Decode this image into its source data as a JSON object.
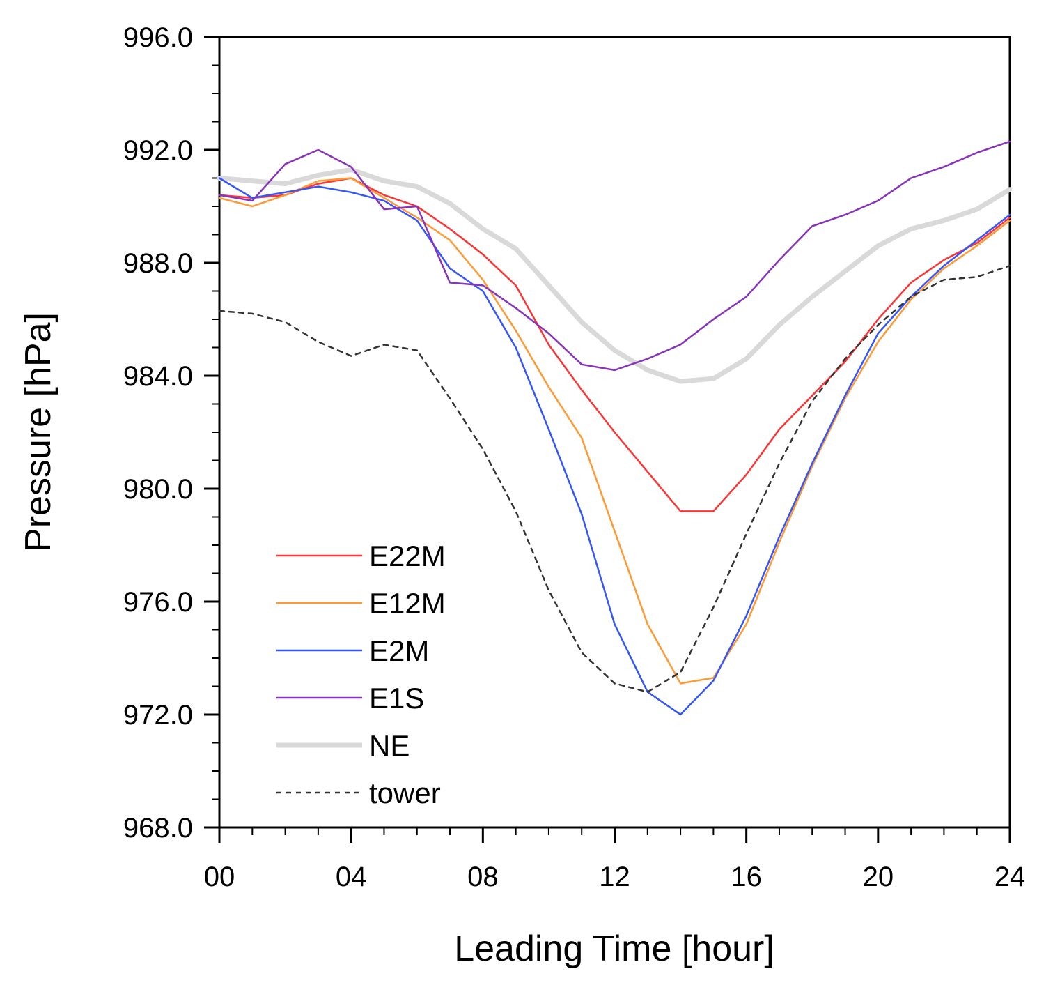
{
  "chart_data": {
    "type": "line",
    "title": "",
    "xlabel": "Leading Time [hour]",
    "ylabel": "Pressure [hPa]",
    "xlim": [
      0,
      24
    ],
    "ylim": [
      968,
      996
    ],
    "x_ticks": [
      0,
      4,
      8,
      12,
      16,
      20,
      24
    ],
    "x_tick_labels": [
      "00",
      "04",
      "08",
      "12",
      "16",
      "20",
      "24"
    ],
    "y_ticks": [
      968,
      972,
      976,
      980,
      984,
      988,
      992,
      996
    ],
    "y_tick_labels": [
      "968.0",
      "972.0",
      "976.0",
      "980.0",
      "984.0",
      "988.0",
      "992.0",
      "996.0"
    ],
    "x_minor_step": 1,
    "y_minor_step": 1,
    "grid": false,
    "legend_position": "lower-left",
    "x": [
      0,
      1,
      2,
      3,
      4,
      5,
      6,
      7,
      8,
      9,
      10,
      11,
      12,
      13,
      14,
      15,
      16,
      17,
      18,
      19,
      20,
      21,
      22,
      23,
      24
    ],
    "series": [
      {
        "name": "E22M",
        "color": "#ff3333",
        "style": "solid",
        "values": [
          990.4,
          990.3,
          990.4,
          990.8,
          991.0,
          990.4,
          990.0,
          989.2,
          988.3,
          987.2,
          985.1,
          983.5,
          982.0,
          980.6,
          979.2,
          979.2,
          980.5,
          982.1,
          983.3,
          984.5,
          986.0,
          987.3,
          988.1,
          988.7,
          989.6
        ]
      },
      {
        "name": "E12M",
        "color": "#ff9933",
        "style": "solid",
        "values": [
          990.3,
          990.0,
          990.4,
          990.9,
          991.0,
          990.3,
          989.6,
          988.8,
          987.4,
          985.6,
          983.6,
          981.8,
          978.5,
          975.2,
          973.1,
          973.3,
          975.2,
          978.1,
          980.8,
          983.2,
          985.2,
          986.7,
          987.8,
          988.6,
          989.5
        ]
      },
      {
        "name": "E2M",
        "color": "#3355ff",
        "style": "solid",
        "values": [
          991.0,
          990.3,
          990.5,
          990.7,
          990.5,
          990.2,
          989.5,
          987.8,
          987.0,
          985.0,
          982.1,
          979.1,
          975.2,
          972.8,
          972.0,
          973.2,
          975.5,
          978.3,
          980.9,
          983.3,
          985.5,
          986.8,
          987.9,
          988.8,
          989.7
        ]
      },
      {
        "name": "E1S",
        "color": "#8833bb",
        "style": "solid",
        "values": [
          990.4,
          990.2,
          991.5,
          992.0,
          991.4,
          989.9,
          990.0,
          987.3,
          987.2,
          986.4,
          985.5,
          984.4,
          984.2,
          984.6,
          985.1,
          986.0,
          986.8,
          988.1,
          989.3,
          989.7,
          990.2,
          991.0,
          991.4,
          991.9,
          992.3
        ]
      },
      {
        "name": "NE",
        "color": "#d9d9d9",
        "style": "thick",
        "values": [
          991.0,
          990.9,
          990.8,
          991.1,
          991.3,
          990.9,
          990.7,
          990.1,
          989.2,
          988.5,
          987.2,
          985.9,
          984.9,
          984.2,
          983.8,
          983.9,
          984.6,
          985.8,
          986.8,
          987.7,
          988.6,
          989.2,
          989.5,
          989.9,
          990.6
        ]
      },
      {
        "name": "tower",
        "color": "#333333",
        "style": "dashed",
        "values": [
          986.3,
          986.2,
          985.9,
          985.2,
          984.7,
          985.1,
          984.9,
          983.2,
          981.4,
          979.2,
          976.4,
          974.2,
          973.1,
          972.8,
          973.5,
          975.8,
          978.4,
          980.9,
          983.1,
          984.6,
          985.8,
          986.8,
          987.4,
          987.5,
          987.9
        ]
      }
    ]
  }
}
